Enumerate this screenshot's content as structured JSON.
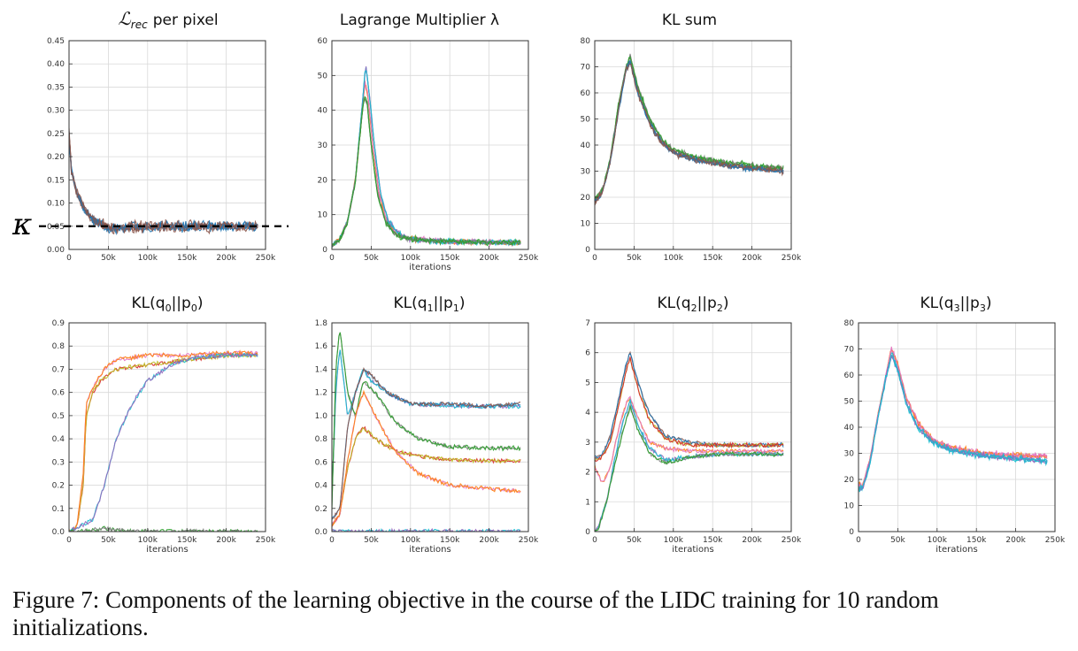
{
  "caption": "Figure 7: Components of the learning objective in the course of the LIDC training for 10 random initializations.",
  "series_colors": [
    "#1f77b4",
    "#ff7f0e",
    "#2ca02c",
    "#d62728",
    "#9467bd",
    "#8c564b",
    "#e377c2",
    "#7f7f7f",
    "#bcbd22",
    "#17becf"
  ],
  "chart_data": [
    {
      "id": "lrec",
      "type": "line",
      "title_main": "ℒ",
      "title_sub": "rec",
      "title_rest": "per pixel",
      "xlabel": "",
      "xlim": [
        0,
        250000
      ],
      "ylim": [
        0,
        0.45
      ],
      "xticks": [
        0,
        50000,
        100000,
        150000,
        200000,
        250000
      ],
      "xtick_labels": [
        "0",
        "50k",
        "100k",
        "150k",
        "200k",
        "250k"
      ],
      "yticks": [
        0,
        0.05,
        0.1,
        0.15,
        0.2,
        0.25,
        0.3,
        0.35,
        0.4,
        0.45
      ],
      "ytick_labels": [
        "0.00",
        "0.05",
        "0.10",
        "0.15",
        "0.20",
        "0.25",
        "0.30",
        "0.35",
        "0.40",
        "0.45"
      ],
      "hline": {
        "y": 0.05,
        "style": "dashed",
        "color": "#000000",
        "label": "κ"
      },
      "series": [
        {
          "x": [
            0,
            3000,
            10000,
            20000,
            30000,
            45000,
            60000,
            80000,
            120000,
            160000,
            200000,
            240000
          ],
          "y": [
            0.25,
            0.17,
            0.12,
            0.085,
            0.065,
            0.05,
            0.045,
            0.048,
            0.05,
            0.05,
            0.05,
            0.05
          ]
        }
      ]
    },
    {
      "id": "lagrange",
      "type": "line",
      "title": "Lagrange Multiplier λ",
      "xlabel": "iterations",
      "xlim": [
        0,
        250000
      ],
      "ylim": [
        0,
        60
      ],
      "xticks": [
        0,
        50000,
        100000,
        150000,
        200000,
        250000
      ],
      "xtick_labels": [
        "0",
        "50k",
        "100k",
        "150k",
        "200k",
        "250k"
      ],
      "yticks": [
        0,
        10,
        20,
        30,
        40,
        50,
        60
      ],
      "ytick_labels": [
        "0",
        "10",
        "20",
        "30",
        "40",
        "50",
        "60"
      ],
      "series": [
        {
          "x": [
            0,
            10000,
            20000,
            30000,
            38000,
            42000,
            46000,
            52000,
            60000,
            70000,
            85000,
            100000,
            150000,
            200000,
            240000
          ],
          "y": [
            1,
            3,
            8,
            20,
            38,
            48,
            44,
            30,
            16,
            8,
            4,
            3,
            2.2,
            2,
            2
          ]
        },
        {
          "x": [
            0,
            10000,
            20000,
            30000,
            38000,
            43000,
            47000,
            54000,
            62000,
            72000,
            88000,
            100000,
            150000,
            200000,
            240000
          ],
          "y": [
            1,
            3,
            8,
            20,
            40,
            53,
            46,
            30,
            16,
            8,
            4,
            3,
            2.2,
            2,
            2
          ]
        },
        {
          "x": [
            0,
            10000,
            20000,
            30000,
            37000,
            41000,
            45000,
            50000,
            58000,
            68000,
            82000,
            100000,
            150000,
            200000,
            240000
          ],
          "y": [
            1,
            3,
            8,
            20,
            36,
            44,
            42,
            30,
            16,
            8,
            4,
            3,
            2.2,
            2,
            2
          ]
        }
      ]
    },
    {
      "id": "klsum",
      "type": "line",
      "title": "KL sum",
      "xlabel": "",
      "xlim": [
        0,
        250000
      ],
      "ylim": [
        0,
        80
      ],
      "xticks": [
        0,
        50000,
        100000,
        150000,
        200000,
        250000
      ],
      "xtick_labels": [
        "0",
        "50k",
        "100k",
        "150k",
        "200k",
        "250k"
      ],
      "yticks": [
        0,
        10,
        20,
        30,
        40,
        50,
        60,
        70,
        80
      ],
      "ytick_labels": [
        "0",
        "10",
        "20",
        "30",
        "40",
        "50",
        "60",
        "70",
        "80"
      ],
      "series": [
        {
          "x": [
            0,
            10000,
            20000,
            30000,
            40000,
            45000,
            55000,
            70000,
            85000,
            100000,
            130000,
            170000,
            200000,
            240000
          ],
          "y": [
            19,
            23,
            35,
            55,
            70,
            74,
            62,
            50,
            42,
            38,
            35,
            33,
            32,
            31
          ]
        },
        {
          "x": [
            0,
            10000,
            20000,
            30000,
            40000,
            45000,
            55000,
            70000,
            85000,
            100000,
            130000,
            170000,
            200000,
            240000
          ],
          "y": [
            18,
            22,
            34,
            53,
            69,
            72,
            60,
            48,
            41,
            37,
            34,
            32,
            31,
            30
          ]
        }
      ]
    },
    {
      "id": "kl0",
      "type": "line",
      "title_base": "KL(q",
      "title_sub1": "0",
      "title_mid": "||p",
      "title_sub2": "0",
      "title_end": ")",
      "xlabel": "iterations",
      "xlim": [
        0,
        250000
      ],
      "ylim": [
        0,
        0.9
      ],
      "xticks": [
        0,
        50000,
        100000,
        150000,
        200000,
        250000
      ],
      "xtick_labels": [
        "0",
        "50k",
        "100k",
        "150k",
        "200k",
        "250k"
      ],
      "yticks": [
        0,
        0.1,
        0.2,
        0.3,
        0.4,
        0.5,
        0.6,
        0.7,
        0.8,
        0.9
      ],
      "ytick_labels": [
        "0.0",
        "0.1",
        "0.2",
        "0.3",
        "0.4",
        "0.5",
        "0.6",
        "0.7",
        "0.8",
        "0.9"
      ],
      "series": [
        {
          "x": [
            0,
            10000,
            18000,
            22000,
            30000,
            40000,
            60000,
            100000,
            150000,
            200000,
            240000
          ],
          "y": [
            0,
            0.02,
            0.2,
            0.5,
            0.6,
            0.65,
            0.7,
            0.72,
            0.74,
            0.76,
            0.76
          ]
        },
        {
          "x": [
            0,
            10000,
            18000,
            22000,
            30000,
            45000,
            60000,
            100000,
            150000,
            200000,
            240000
          ],
          "y": [
            0,
            0.02,
            0.25,
            0.55,
            0.62,
            0.7,
            0.74,
            0.76,
            0.76,
            0.77,
            0.77
          ]
        },
        {
          "x": [
            0,
            30000,
            45000,
            60000,
            80000,
            100000,
            130000,
            160000,
            200000,
            240000
          ],
          "y": [
            0,
            0.05,
            0.2,
            0.4,
            0.55,
            0.65,
            0.72,
            0.75,
            0.76,
            0.76
          ]
        },
        {
          "x": [
            0,
            30000,
            45000,
            60000,
            100000,
            150000,
            200000,
            240000
          ],
          "y": [
            0,
            0.005,
            0.015,
            0.005,
            0.002,
            0.001,
            0.001,
            0.001
          ]
        }
      ]
    },
    {
      "id": "kl1",
      "type": "line",
      "title_base": "KL(q",
      "title_sub1": "1",
      "title_mid": "||p",
      "title_sub2": "1",
      "title_end": ")",
      "xlabel": "iterations",
      "xlim": [
        0,
        250000
      ],
      "ylim": [
        0,
        1.8
      ],
      "xticks": [
        0,
        50000,
        100000,
        150000,
        200000,
        250000
      ],
      "xtick_labels": [
        "0",
        "50k",
        "100k",
        "150k",
        "200k",
        "250k"
      ],
      "yticks": [
        0,
        0.2,
        0.4,
        0.6,
        0.8,
        1.0,
        1.2,
        1.4,
        1.6,
        1.8
      ],
      "ytick_labels": [
        "0.0",
        "0.2",
        "0.4",
        "0.6",
        "0.8",
        "1.0",
        "1.2",
        "1.4",
        "1.6",
        "1.8"
      ],
      "series": [
        {
          "x": [
            0,
            5000,
            10000,
            20000,
            30000,
            40000,
            50000,
            70000,
            100000,
            150000,
            200000,
            240000
          ],
          "y": [
            0.3,
            1.2,
            1.6,
            1.0,
            1.2,
            1.4,
            1.3,
            1.2,
            1.1,
            1.08,
            1.08,
            1.08
          ]
        },
        {
          "x": [
            0,
            5000,
            10000,
            20000,
            30000,
            40000,
            55000,
            80000,
            110000,
            150000,
            200000,
            240000
          ],
          "y": [
            0.2,
            1.4,
            1.75,
            1.2,
            1.0,
            1.3,
            1.2,
            0.95,
            0.8,
            0.73,
            0.72,
            0.72
          ]
        },
        {
          "x": [
            0,
            10000,
            20000,
            30000,
            40000,
            50000,
            70000,
            100000,
            150000,
            200000,
            240000
          ],
          "y": [
            0.1,
            0.2,
            0.9,
            1.2,
            1.4,
            1.35,
            1.2,
            1.1,
            1.1,
            1.08,
            1.1
          ]
        },
        {
          "x": [
            0,
            10000,
            20000,
            30000,
            40000,
            55000,
            80000,
            110000,
            150000,
            200000,
            240000
          ],
          "y": [
            0.05,
            0.15,
            0.55,
            0.8,
            0.9,
            0.8,
            0.7,
            0.65,
            0.62,
            0.61,
            0.61
          ]
        },
        {
          "x": [
            0,
            10000,
            20000,
            30000,
            40000,
            55000,
            80000,
            110000,
            150000,
            200000,
            240000
          ],
          "y": [
            0.05,
            0.15,
            0.6,
            1.0,
            1.2,
            1.0,
            0.7,
            0.5,
            0.4,
            0.37,
            0.35
          ]
        },
        {
          "x": [
            0,
            50000,
            100000,
            150000,
            200000,
            240000
          ],
          "y": [
            0,
            0.005,
            0.003,
            0.002,
            0.002,
            0.002
          ]
        }
      ]
    },
    {
      "id": "kl2",
      "type": "line",
      "title_base": "KL(q",
      "title_sub1": "2",
      "title_mid": "||p",
      "title_sub2": "2",
      "title_end": ")",
      "xlabel": "iterations",
      "xlim": [
        0,
        250000
      ],
      "ylim": [
        0,
        7
      ],
      "xticks": [
        0,
        50000,
        100000,
        150000,
        200000,
        250000
      ],
      "xtick_labels": [
        "0",
        "50k",
        "100k",
        "150k",
        "200k",
        "250k"
      ],
      "yticks": [
        0,
        1,
        2,
        3,
        4,
        5,
        6,
        7
      ],
      "ytick_labels": [
        "0",
        "1",
        "2",
        "3",
        "4",
        "5",
        "6",
        "7"
      ],
      "series": [
        {
          "x": [
            0,
            10000,
            20000,
            30000,
            40000,
            45000,
            55000,
            70000,
            90000,
            120000,
            160000,
            200000,
            240000
          ],
          "y": [
            2.5,
            2.6,
            3.2,
            4.4,
            5.6,
            6.0,
            5.0,
            3.9,
            3.2,
            3.0,
            2.9,
            2.9,
            2.9
          ]
        },
        {
          "x": [
            0,
            10000,
            20000,
            30000,
            40000,
            45000,
            55000,
            70000,
            90000,
            120000,
            160000,
            200000,
            240000
          ],
          "y": [
            2.4,
            2.5,
            3.0,
            4.2,
            5.4,
            5.8,
            4.8,
            3.7,
            3.1,
            2.9,
            2.9,
            2.9,
            2.9
          ]
        },
        {
          "x": [
            0,
            10000,
            20000,
            30000,
            40000,
            45000,
            55000,
            70000,
            90000,
            120000,
            160000,
            200000,
            240000
          ],
          "y": [
            2.2,
            1.6,
            2.2,
            3.4,
            4.3,
            4.5,
            3.8,
            3.0,
            2.8,
            2.7,
            2.7,
            2.7,
            2.7
          ]
        },
        {
          "x": [
            0,
            5000,
            15000,
            25000,
            35000,
            45000,
            55000,
            70000,
            90000,
            120000,
            160000,
            200000,
            240000
          ],
          "y": [
            0,
            0.2,
            1.0,
            2.4,
            3.6,
            4.4,
            3.6,
            2.8,
            2.4,
            2.5,
            2.6,
            2.6,
            2.6
          ]
        },
        {
          "x": [
            0,
            5000,
            15000,
            25000,
            35000,
            45000,
            55000,
            70000,
            90000,
            120000,
            160000,
            200000,
            240000
          ],
          "y": [
            0,
            0.1,
            1.0,
            2.2,
            3.3,
            4.2,
            3.4,
            2.6,
            2.3,
            2.5,
            2.6,
            2.6,
            2.6
          ]
        }
      ]
    },
    {
      "id": "kl3",
      "type": "line",
      "title_base": "KL(q",
      "title_sub1": "3",
      "title_mid": "||p",
      "title_sub2": "3",
      "title_end": ")",
      "xlabel": "iterations",
      "xlim": [
        0,
        250000
      ],
      "ylim": [
        0,
        80
      ],
      "xticks": [
        0,
        50000,
        100000,
        150000,
        200000,
        250000
      ],
      "xtick_labels": [
        "0",
        "50k",
        "100k",
        "150k",
        "200k",
        "250k"
      ],
      "yticks": [
        0,
        10,
        20,
        30,
        40,
        50,
        60,
        70,
        80
      ],
      "ytick_labels": [
        "0",
        "10",
        "20",
        "30",
        "40",
        "50",
        "60",
        "70",
        "80"
      ],
      "series": [
        {
          "x": [
            0,
            5000,
            15000,
            25000,
            35000,
            42000,
            50000,
            60000,
            75000,
            95000,
            120000,
            160000,
            200000,
            240000
          ],
          "y": [
            18,
            17,
            28,
            45,
            60,
            70,
            64,
            52,
            42,
            35,
            32,
            30,
            29,
            29
          ]
        },
        {
          "x": [
            0,
            5000,
            15000,
            25000,
            35000,
            42000,
            50000,
            60000,
            75000,
            95000,
            120000,
            160000,
            200000,
            240000
          ],
          "y": [
            17,
            16,
            27,
            44,
            59,
            68,
            62,
            50,
            40,
            34,
            31,
            29,
            28,
            27
          ]
        }
      ]
    }
  ]
}
